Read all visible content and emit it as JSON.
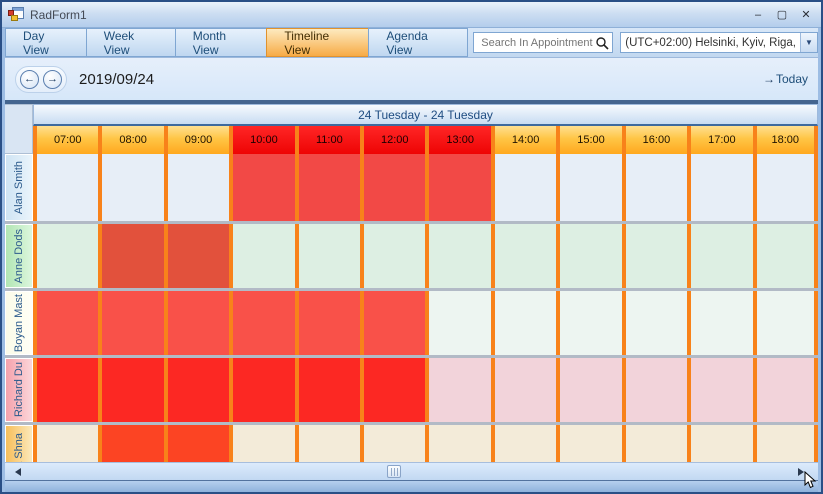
{
  "window": {
    "title": "RadForm1",
    "minimize_glyph": "–",
    "maximize_glyph": "▢",
    "close_glyph": "✕"
  },
  "tabs": [
    {
      "label": "Day View",
      "active": false
    },
    {
      "label": "Week View",
      "active": false
    },
    {
      "label": "Month View",
      "active": false
    },
    {
      "label": "Timeline View",
      "active": true
    },
    {
      "label": "Agenda View",
      "active": false
    }
  ],
  "toolbar": {
    "search_placeholder": "Search In Appointments",
    "search_icon": "magnifier-icon",
    "timezone_value": "(UTC+02:00) Helsinki, Kyiv, Riga,",
    "dropdown_glyph": "▼"
  },
  "navbar": {
    "prev_glyph": "←",
    "next_glyph": "→",
    "date": "2019/09/24",
    "today_arrow": "→",
    "today_label": "Today"
  },
  "scheduler": {
    "day_header": "24 Tuesday - 24 Tuesday",
    "times": [
      "07:00",
      "08:00",
      "09:00",
      "10:00",
      "11:00",
      "12:00",
      "13:00",
      "14:00",
      "15:00",
      "16:00",
      "17:00",
      "18:00"
    ],
    "hot_times": [
      "10:00",
      "11:00",
      "12:00",
      "13:00"
    ],
    "rows": [
      {
        "name": "Alan Smith",
        "header_from": "#cfe4f4",
        "header_to": "#eaf4fb",
        "free_color": "#e7eef7",
        "busy_color": "#f24946",
        "cells": [
          0,
          0,
          0,
          1,
          1,
          1,
          1,
          0,
          0,
          0,
          0,
          0
        ]
      },
      {
        "name": "Anne Dods",
        "header_from": "#b2e6b4",
        "header_to": "#dcf6dd",
        "free_color": "#ddefe3",
        "busy_color": "#e2513c",
        "cells": [
          0,
          1,
          1,
          0,
          0,
          0,
          0,
          0,
          0,
          0,
          0,
          0
        ]
      },
      {
        "name": "Boyan Mast",
        "header_from": "#fbfbe9",
        "header_to": "#fffff6",
        "free_color": "#edf5f1",
        "busy_color": "#f95149",
        "cells": [
          1,
          1,
          1,
          1,
          1,
          1,
          0,
          0,
          0,
          0,
          0,
          0
        ]
      },
      {
        "name": "Richard Du",
        "header_from": "#f5a2ac",
        "header_to": "#fbd6da",
        "free_color": "#f2d3da",
        "busy_color": "#fc2823",
        "cells": [
          1,
          1,
          1,
          1,
          1,
          1,
          0,
          0,
          0,
          0,
          0,
          0
        ]
      },
      {
        "name": "aria Shna",
        "header_from": "#f7be5a",
        "header_to": "#fce9bb",
        "free_color": "#f3ebd9",
        "busy_color": "#fc4423",
        "cells": [
          0,
          1,
          1,
          0,
          0,
          0,
          0,
          0,
          0,
          0,
          0,
          0
        ]
      }
    ],
    "colors": {
      "column_separator": "#f8821a",
      "row_separator": "#b2bac6",
      "ruler_hot": "#f20808",
      "selected_tab": "#f7ab46"
    }
  }
}
